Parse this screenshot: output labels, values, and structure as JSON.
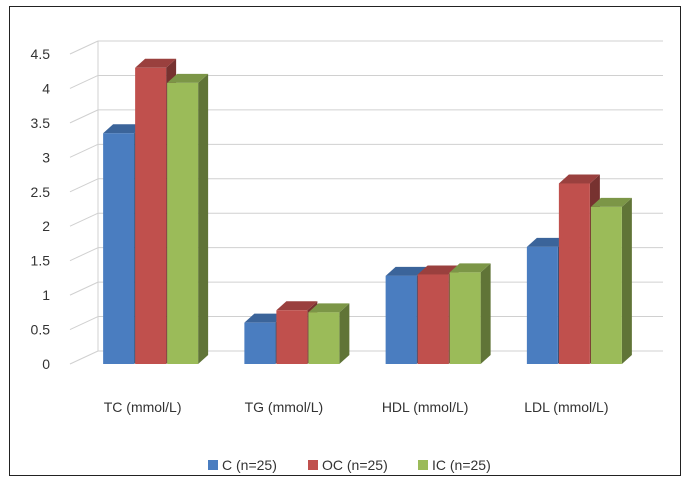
{
  "chart_data": {
    "type": "bar",
    "style": "3d-clustered-column",
    "title": "",
    "xlabel": "",
    "ylabel": "",
    "categories": [
      "TC (mmol/L)",
      "TG (mmol/L)",
      "HDL (mmol/L)",
      "LDL (mmol/L)"
    ],
    "series": [
      {
        "name": "C (n=25)",
        "color": "#4a7dc0",
        "values": [
          3.35,
          0.6,
          1.28,
          1.7
        ]
      },
      {
        "name": "OC (n=25)",
        "color": "#c0504d",
        "values": [
          4.3,
          0.78,
          1.3,
          2.62
        ]
      },
      {
        "name": "IC (n=25)",
        "color": "#9bbb59",
        "values": [
          4.08,
          0.75,
          1.33,
          2.28
        ]
      }
    ],
    "yticks": [
      "0",
      "0.5",
      "1",
      "1.5",
      "2",
      "2.5",
      "3",
      "3.5",
      "4",
      "4.5"
    ],
    "ylim": [
      0,
      4.5
    ],
    "grid": true,
    "legend_position": "bottom"
  }
}
